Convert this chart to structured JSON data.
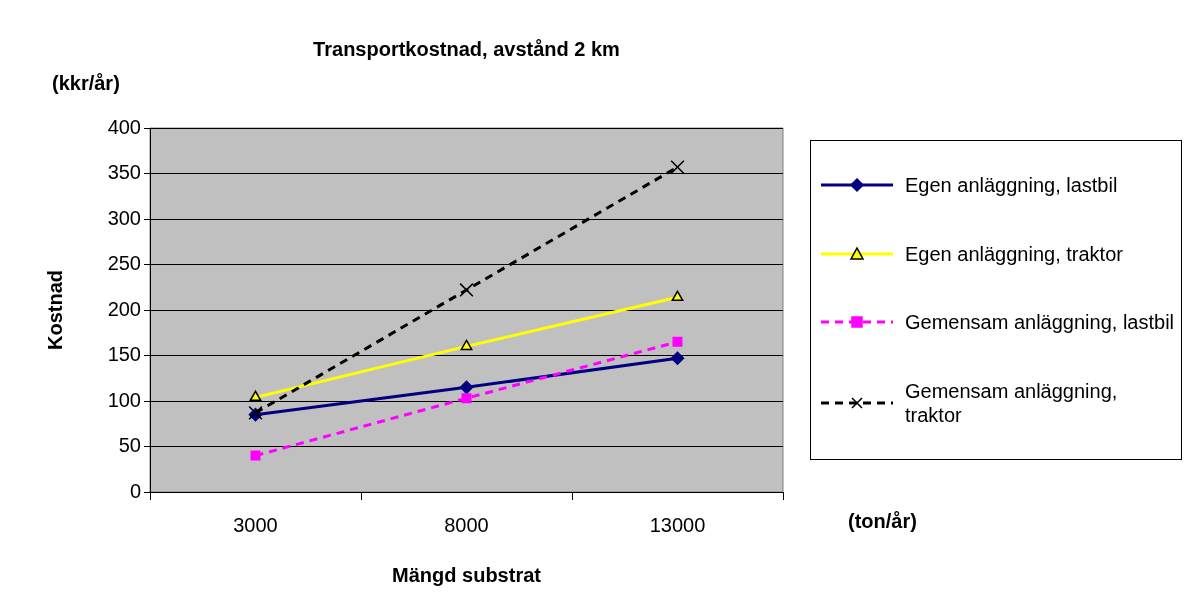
{
  "chart_data": {
    "type": "line",
    "title": "Transportkostnad, avstånd 2 km",
    "xlabel": "Mängd substrat",
    "ylabel": "Kostnad",
    "annotations": [
      "(kkr/år)",
      "(ton/år)"
    ],
    "categories": [
      "3000",
      "8000",
      "13000"
    ],
    "series": [
      {
        "name": "Egen anläggning, lastbil",
        "color": "#000080",
        "marker": "diamond",
        "line_style": "solid",
        "values": [
          85,
          115,
          147
        ]
      },
      {
        "name": "Egen anläggning, traktor",
        "color": "#ffff00",
        "marker": "triangle",
        "line_style": "solid",
        "values": [
          104,
          160,
          214
        ]
      },
      {
        "name": "Gemensam anläggning, lastbil",
        "color": "#ff00ff",
        "marker": "square",
        "line_style": "dashed",
        "values": [
          40,
          103,
          165
        ]
      },
      {
        "name": "Gemensam anläggning, traktor",
        "color": "#000000",
        "marker": "cross",
        "line_style": "dashed",
        "values": [
          87,
          222,
          357
        ]
      }
    ],
    "ylim": [
      0,
      400
    ],
    "yticks": [
      0,
      50,
      100,
      150,
      200,
      250,
      300,
      350,
      400
    ],
    "grid": "y",
    "legend": "right"
  }
}
